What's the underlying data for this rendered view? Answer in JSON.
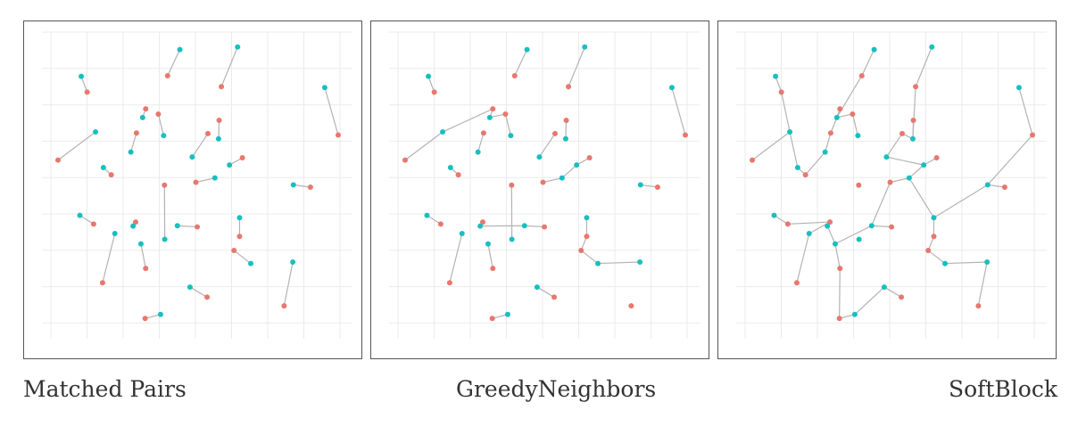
{
  "colors": {
    "treated": "#e8776e",
    "control": "#18bfc0",
    "edge": "#b3b3b3",
    "grid": "#ebebeb"
  },
  "captions": [
    "Matched Pairs",
    "GreedyNeighbors",
    "SoftBlock"
  ],
  "chart_data": [
    {
      "type": "scatter",
      "title": "",
      "xlabel": "",
      "ylabel": "",
      "xlim": [
        0,
        1
      ],
      "ylim": [
        0,
        1
      ],
      "grid": true,
      "points": [
        {
          "x": 0.083,
          "y": 0.868,
          "g": "control"
        },
        {
          "x": 0.104,
          "y": 0.813,
          "g": "treated"
        },
        {
          "x": 0.435,
          "y": 0.961,
          "g": "control"
        },
        {
          "x": 0.391,
          "y": 0.87,
          "g": "treated"
        },
        {
          "x": 0.641,
          "y": 0.97,
          "g": "control"
        },
        {
          "x": 0.583,
          "y": 0.832,
          "g": "treated"
        },
        {
          "x": 0.952,
          "y": 0.829,
          "g": "control"
        },
        {
          "x": 1.0,
          "y": 0.664,
          "g": "treated"
        },
        {
          "x": 0.134,
          "y": 0.675,
          "g": "control"
        },
        {
          "x": 0.0,
          "y": 0.577,
          "g": "treated"
        },
        {
          "x": 0.313,
          "y": 0.755,
          "g": "treated"
        },
        {
          "x": 0.302,
          "y": 0.725,
          "g": "control"
        },
        {
          "x": 0.358,
          "y": 0.737,
          "g": "treated"
        },
        {
          "x": 0.377,
          "y": 0.662,
          "g": "control"
        },
        {
          "x": 0.28,
          "y": 0.671,
          "g": "treated"
        },
        {
          "x": 0.26,
          "y": 0.605,
          "g": "control"
        },
        {
          "x": 0.575,
          "y": 0.715,
          "g": "treated"
        },
        {
          "x": 0.573,
          "y": 0.651,
          "g": "control"
        },
        {
          "x": 0.535,
          "y": 0.669,
          "g": "treated"
        },
        {
          "x": 0.479,
          "y": 0.588,
          "g": "control"
        },
        {
          "x": 0.658,
          "y": 0.585,
          "g": "treated"
        },
        {
          "x": 0.612,
          "y": 0.56,
          "g": "control"
        },
        {
          "x": 0.56,
          "y": 0.515,
          "g": "control"
        },
        {
          "x": 0.492,
          "y": 0.5,
          "g": "treated"
        },
        {
          "x": 0.162,
          "y": 0.551,
          "g": "control"
        },
        {
          "x": 0.19,
          "y": 0.526,
          "g": "treated"
        },
        {
          "x": 0.38,
          "y": 0.49,
          "g": "treated"
        },
        {
          "x": 0.381,
          "y": 0.302,
          "g": "control"
        },
        {
          "x": 0.078,
          "y": 0.385,
          "g": "control"
        },
        {
          "x": 0.127,
          "y": 0.355,
          "g": "treated"
        },
        {
          "x": 0.277,
          "y": 0.362,
          "g": "treated"
        },
        {
          "x": 0.268,
          "y": 0.348,
          "g": "control"
        },
        {
          "x": 0.426,
          "y": 0.349,
          "g": "control"
        },
        {
          "x": 0.497,
          "y": 0.345,
          "g": "treated"
        },
        {
          "x": 0.648,
          "y": 0.377,
          "g": "control"
        },
        {
          "x": 0.648,
          "y": 0.312,
          "g": "treated"
        },
        {
          "x": 0.84,
          "y": 0.491,
          "g": "control"
        },
        {
          "x": 0.901,
          "y": 0.483,
          "g": "treated"
        },
        {
          "x": 0.203,
          "y": 0.322,
          "g": "control"
        },
        {
          "x": 0.159,
          "y": 0.151,
          "g": "treated"
        },
        {
          "x": 0.296,
          "y": 0.286,
          "g": "control"
        },
        {
          "x": 0.313,
          "y": 0.201,
          "g": "treated"
        },
        {
          "x": 0.628,
          "y": 0.263,
          "g": "treated"
        },
        {
          "x": 0.688,
          "y": 0.218,
          "g": "control"
        },
        {
          "x": 0.838,
          "y": 0.223,
          "g": "control"
        },
        {
          "x": 0.807,
          "y": 0.071,
          "g": "treated"
        },
        {
          "x": 0.471,
          "y": 0.136,
          "g": "control"
        },
        {
          "x": 0.532,
          "y": 0.101,
          "g": "treated"
        },
        {
          "x": 0.366,
          "y": 0.041,
          "g": "control"
        },
        {
          "x": 0.311,
          "y": 0.027,
          "g": "treated"
        }
      ],
      "edges": [
        [
          0,
          1
        ],
        [
          2,
          3
        ],
        [
          4,
          5
        ],
        [
          6,
          7
        ],
        [
          8,
          9
        ],
        [
          10,
          11
        ],
        [
          12,
          13
        ],
        [
          14,
          15
        ],
        [
          16,
          17
        ],
        [
          18,
          19
        ],
        [
          20,
          21
        ],
        [
          22,
          23
        ],
        [
          24,
          25
        ],
        [
          26,
          27
        ],
        [
          28,
          29
        ],
        [
          30,
          31
        ],
        [
          32,
          33
        ],
        [
          34,
          35
        ],
        [
          36,
          37
        ],
        [
          38,
          39
        ],
        [
          40,
          41
        ],
        [
          42,
          43
        ],
        [
          44,
          45
        ],
        [
          46,
          47
        ],
        [
          48,
          49
        ]
      ]
    },
    {
      "type": "scatter",
      "title": "",
      "xlabel": "",
      "ylabel": "",
      "xlim": [
        0,
        1
      ],
      "ylim": [
        0,
        1
      ],
      "grid": true,
      "points": [
        {
          "x": 0.083,
          "y": 0.868,
          "g": "control"
        },
        {
          "x": 0.104,
          "y": 0.813,
          "g": "treated"
        },
        {
          "x": 0.435,
          "y": 0.961,
          "g": "control"
        },
        {
          "x": 0.391,
          "y": 0.87,
          "g": "treated"
        },
        {
          "x": 0.641,
          "y": 0.97,
          "g": "control"
        },
        {
          "x": 0.583,
          "y": 0.832,
          "g": "treated"
        },
        {
          "x": 0.952,
          "y": 0.829,
          "g": "control"
        },
        {
          "x": 1.0,
          "y": 0.664,
          "g": "treated"
        },
        {
          "x": 0.134,
          "y": 0.675,
          "g": "control"
        },
        {
          "x": 0.0,
          "y": 0.577,
          "g": "treated"
        },
        {
          "x": 0.313,
          "y": 0.755,
          "g": "treated"
        },
        {
          "x": 0.302,
          "y": 0.725,
          "g": "control"
        },
        {
          "x": 0.358,
          "y": 0.737,
          "g": "treated"
        },
        {
          "x": 0.377,
          "y": 0.662,
          "g": "control"
        },
        {
          "x": 0.28,
          "y": 0.671,
          "g": "treated"
        },
        {
          "x": 0.26,
          "y": 0.605,
          "g": "control"
        },
        {
          "x": 0.575,
          "y": 0.715,
          "g": "treated"
        },
        {
          "x": 0.573,
          "y": 0.651,
          "g": "control"
        },
        {
          "x": 0.535,
          "y": 0.669,
          "g": "treated"
        },
        {
          "x": 0.479,
          "y": 0.588,
          "g": "control"
        },
        {
          "x": 0.658,
          "y": 0.585,
          "g": "treated"
        },
        {
          "x": 0.612,
          "y": 0.56,
          "g": "control"
        },
        {
          "x": 0.56,
          "y": 0.515,
          "g": "control"
        },
        {
          "x": 0.492,
          "y": 0.5,
          "g": "treated"
        },
        {
          "x": 0.162,
          "y": 0.551,
          "g": "control"
        },
        {
          "x": 0.19,
          "y": 0.526,
          "g": "treated"
        },
        {
          "x": 0.38,
          "y": 0.49,
          "g": "treated"
        },
        {
          "x": 0.381,
          "y": 0.302,
          "g": "control"
        },
        {
          "x": 0.078,
          "y": 0.385,
          "g": "control"
        },
        {
          "x": 0.127,
          "y": 0.355,
          "g": "treated"
        },
        {
          "x": 0.277,
          "y": 0.362,
          "g": "treated"
        },
        {
          "x": 0.268,
          "y": 0.348,
          "g": "control"
        },
        {
          "x": 0.426,
          "y": 0.349,
          "g": "control"
        },
        {
          "x": 0.497,
          "y": 0.345,
          "g": "treated"
        },
        {
          "x": 0.648,
          "y": 0.377,
          "g": "control"
        },
        {
          "x": 0.648,
          "y": 0.312,
          "g": "treated"
        },
        {
          "x": 0.84,
          "y": 0.491,
          "g": "control"
        },
        {
          "x": 0.901,
          "y": 0.483,
          "g": "treated"
        },
        {
          "x": 0.203,
          "y": 0.322,
          "g": "control"
        },
        {
          "x": 0.159,
          "y": 0.151,
          "g": "treated"
        },
        {
          "x": 0.296,
          "y": 0.286,
          "g": "control"
        },
        {
          "x": 0.313,
          "y": 0.201,
          "g": "treated"
        },
        {
          "x": 0.628,
          "y": 0.263,
          "g": "treated"
        },
        {
          "x": 0.688,
          "y": 0.218,
          "g": "control"
        },
        {
          "x": 0.838,
          "y": 0.223,
          "g": "control"
        },
        {
          "x": 0.807,
          "y": 0.071,
          "g": "treated"
        },
        {
          "x": 0.471,
          "y": 0.136,
          "g": "control"
        },
        {
          "x": 0.532,
          "y": 0.101,
          "g": "treated"
        },
        {
          "x": 0.366,
          "y": 0.041,
          "g": "control"
        },
        {
          "x": 0.311,
          "y": 0.027,
          "g": "treated"
        }
      ],
      "edges": [
        [
          0,
          1
        ],
        [
          2,
          3
        ],
        [
          4,
          5
        ],
        [
          6,
          7
        ],
        [
          8,
          9
        ],
        [
          8,
          10
        ],
        [
          10,
          11
        ],
        [
          11,
          12
        ],
        [
          12,
          13
        ],
        [
          14,
          15
        ],
        [
          16,
          17
        ],
        [
          18,
          19
        ],
        [
          20,
          21
        ],
        [
          21,
          22
        ],
        [
          22,
          23
        ],
        [
          24,
          25
        ],
        [
          26,
          27
        ],
        [
          28,
          29
        ],
        [
          30,
          31
        ],
        [
          31,
          32
        ],
        [
          32,
          33
        ],
        [
          34,
          35
        ],
        [
          35,
          42
        ],
        [
          42,
          43
        ],
        [
          43,
          44
        ],
        [
          36,
          37
        ],
        [
          38,
          39
        ],
        [
          40,
          41
        ],
        [
          46,
          47
        ],
        [
          48,
          49
        ]
      ]
    },
    {
      "type": "scatter",
      "title": "",
      "xlabel": "",
      "ylabel": "",
      "xlim": [
        0,
        1
      ],
      "ylim": [
        0,
        1
      ],
      "grid": true,
      "points": [
        {
          "x": 0.083,
          "y": 0.868,
          "g": "control"
        },
        {
          "x": 0.104,
          "y": 0.813,
          "g": "treated"
        },
        {
          "x": 0.435,
          "y": 0.961,
          "g": "control"
        },
        {
          "x": 0.391,
          "y": 0.87,
          "g": "treated"
        },
        {
          "x": 0.641,
          "y": 0.97,
          "g": "control"
        },
        {
          "x": 0.583,
          "y": 0.832,
          "g": "treated"
        },
        {
          "x": 0.952,
          "y": 0.829,
          "g": "control"
        },
        {
          "x": 1.0,
          "y": 0.664,
          "g": "treated"
        },
        {
          "x": 0.134,
          "y": 0.675,
          "g": "control"
        },
        {
          "x": 0.0,
          "y": 0.577,
          "g": "treated"
        },
        {
          "x": 0.313,
          "y": 0.755,
          "g": "treated"
        },
        {
          "x": 0.302,
          "y": 0.725,
          "g": "control"
        },
        {
          "x": 0.358,
          "y": 0.737,
          "g": "treated"
        },
        {
          "x": 0.377,
          "y": 0.662,
          "g": "control"
        },
        {
          "x": 0.28,
          "y": 0.671,
          "g": "treated"
        },
        {
          "x": 0.26,
          "y": 0.605,
          "g": "control"
        },
        {
          "x": 0.575,
          "y": 0.715,
          "g": "treated"
        },
        {
          "x": 0.573,
          "y": 0.651,
          "g": "control"
        },
        {
          "x": 0.535,
          "y": 0.669,
          "g": "treated"
        },
        {
          "x": 0.479,
          "y": 0.588,
          "g": "control"
        },
        {
          "x": 0.658,
          "y": 0.585,
          "g": "treated"
        },
        {
          "x": 0.612,
          "y": 0.56,
          "g": "control"
        },
        {
          "x": 0.56,
          "y": 0.515,
          "g": "control"
        },
        {
          "x": 0.492,
          "y": 0.5,
          "g": "treated"
        },
        {
          "x": 0.162,
          "y": 0.551,
          "g": "control"
        },
        {
          "x": 0.19,
          "y": 0.526,
          "g": "treated"
        },
        {
          "x": 0.38,
          "y": 0.49,
          "g": "treated"
        },
        {
          "x": 0.381,
          "y": 0.302,
          "g": "control"
        },
        {
          "x": 0.078,
          "y": 0.385,
          "g": "control"
        },
        {
          "x": 0.127,
          "y": 0.355,
          "g": "treated"
        },
        {
          "x": 0.277,
          "y": 0.362,
          "g": "treated"
        },
        {
          "x": 0.268,
          "y": 0.348,
          "g": "control"
        },
        {
          "x": 0.426,
          "y": 0.349,
          "g": "control"
        },
        {
          "x": 0.497,
          "y": 0.345,
          "g": "treated"
        },
        {
          "x": 0.648,
          "y": 0.377,
          "g": "control"
        },
        {
          "x": 0.648,
          "y": 0.312,
          "g": "treated"
        },
        {
          "x": 0.84,
          "y": 0.491,
          "g": "control"
        },
        {
          "x": 0.901,
          "y": 0.483,
          "g": "treated"
        },
        {
          "x": 0.203,
          "y": 0.322,
          "g": "control"
        },
        {
          "x": 0.159,
          "y": 0.151,
          "g": "treated"
        },
        {
          "x": 0.296,
          "y": 0.286,
          "g": "control"
        },
        {
          "x": 0.313,
          "y": 0.201,
          "g": "treated"
        },
        {
          "x": 0.628,
          "y": 0.263,
          "g": "treated"
        },
        {
          "x": 0.688,
          "y": 0.218,
          "g": "control"
        },
        {
          "x": 0.838,
          "y": 0.223,
          "g": "control"
        },
        {
          "x": 0.807,
          "y": 0.071,
          "g": "treated"
        },
        {
          "x": 0.471,
          "y": 0.136,
          "g": "control"
        },
        {
          "x": 0.532,
          "y": 0.101,
          "g": "treated"
        },
        {
          "x": 0.366,
          "y": 0.041,
          "g": "control"
        },
        {
          "x": 0.311,
          "y": 0.027,
          "g": "treated"
        }
      ],
      "edges": [
        [
          0,
          1
        ],
        [
          1,
          8
        ],
        [
          2,
          3
        ],
        [
          3,
          11
        ],
        [
          4,
          5
        ],
        [
          5,
          17
        ],
        [
          6,
          7
        ],
        [
          7,
          36
        ],
        [
          8,
          9
        ],
        [
          8,
          24
        ],
        [
          24,
          25
        ],
        [
          25,
          15
        ],
        [
          10,
          11
        ],
        [
          11,
          12
        ],
        [
          12,
          13
        ],
        [
          14,
          15
        ],
        [
          14,
          11
        ],
        [
          16,
          17
        ],
        [
          17,
          18
        ],
        [
          18,
          19
        ],
        [
          19,
          21
        ],
        [
          20,
          21
        ],
        [
          21,
          22
        ],
        [
          22,
          23
        ],
        [
          22,
          34
        ],
        [
          23,
          32
        ],
        [
          34,
          35
        ],
        [
          35,
          42
        ],
        [
          42,
          43
        ],
        [
          43,
          44
        ],
        [
          44,
          45
        ],
        [
          36,
          37
        ],
        [
          36,
          34
        ],
        [
          28,
          29
        ],
        [
          29,
          30
        ],
        [
          30,
          31
        ],
        [
          30,
          38
        ],
        [
          31,
          40
        ],
        [
          32,
          33
        ],
        [
          32,
          40
        ],
        [
          38,
          39
        ],
        [
          40,
          41
        ],
        [
          41,
          49
        ],
        [
          49,
          48
        ],
        [
          48,
          46
        ],
        [
          46,
          47
        ]
      ]
    }
  ]
}
